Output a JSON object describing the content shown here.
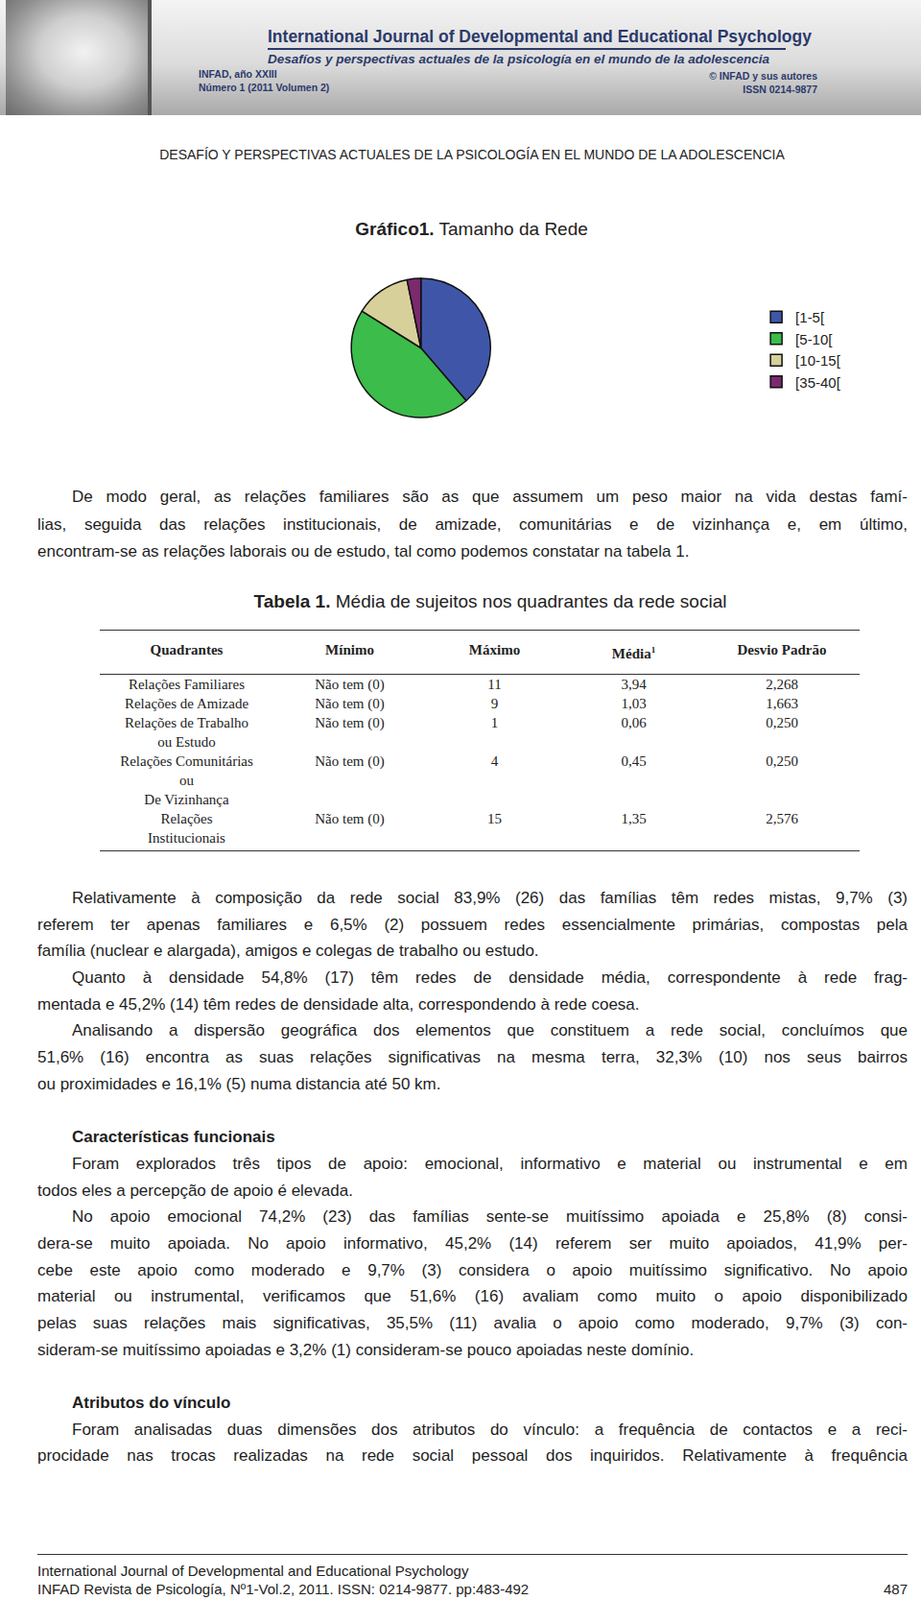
{
  "header": {
    "journal": "International Journal of Developmental and Educational Psychology",
    "subtitle": "Desafíos y perspectivas actuales de la psicología en el mundo de la adolescencia",
    "issue": [
      "INFAD, año XXIII",
      "Número 1 (2011 Volumen 2)"
    ],
    "rights": [
      "© INFAD y sus autores",
      "ISSN 0214-9877"
    ]
  },
  "running_head": "DESAFÍO Y PERSPECTIVAS ACTUALES DE LA PSICOLOGÍA EN EL MUNDO DE LA ADOLESCENCIA",
  "chart_data": {
    "type": "pie",
    "title": "Gráfico1. Tamanho da Rede",
    "categories": [
      "[1-5[",
      "[5-10[",
      "[10-15[",
      "[35-40["
    ],
    "values": [
      38.7,
      45.2,
      12.9,
      3.2
    ],
    "colors": [
      "#3f56a8",
      "#3cbc4a",
      "#d8d09a",
      "#7b2a6e"
    ],
    "legend": "top right",
    "data_labels": false
  },
  "intro": {
    "lines": [
      "De modo geral, as relações familiares são as que assumem um peso maior na vida destas famí-",
      "lias, seguida das relações institucionais, de amizade, comunitárias e de vizinhança e, em último,",
      "encontram-se as relações laborais ou de estudo, tal como podemos constatar na tabela 1."
    ]
  },
  "table": {
    "title": "Tabela 1. Média de sujeitos nos quadrantes da rede social",
    "header": [
      "Quadrantes",
      "Mínimo",
      "Máximo",
      {
        "text": "Média",
        "sup": "1"
      },
      "Desvio Padrão"
    ],
    "rows": [
      [
        [
          "Relações Familiares"
        ],
        "Não tem (0)",
        "11",
        "3,94",
        "2,268"
      ],
      [
        [
          "Relações de Amizade"
        ],
        "Não tem (0)",
        "9",
        "1,03",
        "1,663"
      ],
      [
        [
          "Relações de Trabalho",
          "ou Estudo"
        ],
        "Não tem (0)",
        "1",
        "0,06",
        "0,250"
      ],
      [
        [
          "Relações Comunitárias",
          "ou",
          "De Vizinhança"
        ],
        "Não tem (0)",
        "4",
        "0,45",
        "0,250"
      ],
      [
        [
          "Relações",
          "Institucionais"
        ],
        "Não tem (0)",
        "15",
        "1,35",
        "2,576"
      ]
    ]
  },
  "body": [
    {
      "lines": [
        "Relativamente à composição da rede social 83,9% (26) das famílias têm redes mistas, 9,7% (3)",
        "referem ter apenas familiares e 6,5% (2) possuem redes essencialmente primárias, compostas pela",
        "família (nuclear e alargada), amigos e colegas de trabalho ou estudo."
      ]
    },
    {
      "lines": [
        "Quanto à densidade 54,8% (17) têm redes de densidade média, correspondente à rede frag-",
        "mentada e 45,2% (14) têm redes de densidade alta, correspondendo à rede coesa."
      ]
    },
    {
      "lines": [
        "Analisando a dispersão geográfica dos elementos que constituem a rede social, concluímos que",
        "51,6% (16) encontra as suas relações significativas na mesma terra, 32,3% (10) nos seus bairros",
        "ou proximidades e 16,1% (5) numa distancia até 50 km."
      ]
    },
    {
      "heading": "Características funcionais"
    },
    {
      "lines": [
        "Foram explorados três tipos de apoio: emocional, informativo e material ou instrumental e em",
        "todos eles a percepção de apoio é elevada."
      ]
    },
    {
      "lines": [
        "No apoio emocional 74,2% (23) das famílias sente-se muitíssimo apoiada e 25,8% (8) consi-",
        "dera-se muito apoiada. No apoio informativo, 45,2% (14) referem  ser muito apoiados, 41,9% per-",
        "cebe este apoio como moderado e 9,7% (3) considera o apoio muitíssimo significativo. No apoio",
        "material ou instrumental, verificamos que 51,6% (16) avaliam como muito o apoio disponibilizado",
        "pelas suas relações mais significativas, 35,5% (11) avalia o apoio como moderado, 9,7% (3) con-",
        "sideram-se muitíssimo apoiadas e  3,2% (1) consideram-se pouco apoiadas neste domínio."
      ]
    },
    {
      "heading": "Atributos do vínculo"
    },
    {
      "lines": [
        "Foram analisadas duas dimensões dos atributos do vínculo: a frequência de contactos e a reci-",
        "procidade nas trocas realizadas na rede social pessoal dos inquiridos. Relativamente  à  frequência"
      ],
      "continues": true
    }
  ],
  "footer": {
    "journal": "International Journal of Developmental and Educational Psychology",
    "citation": "INFAD Revista de Psicología, Nº1-Vol.2, 2011. ISSN: 0214-9877. pp:483-492",
    "page": "487"
  }
}
